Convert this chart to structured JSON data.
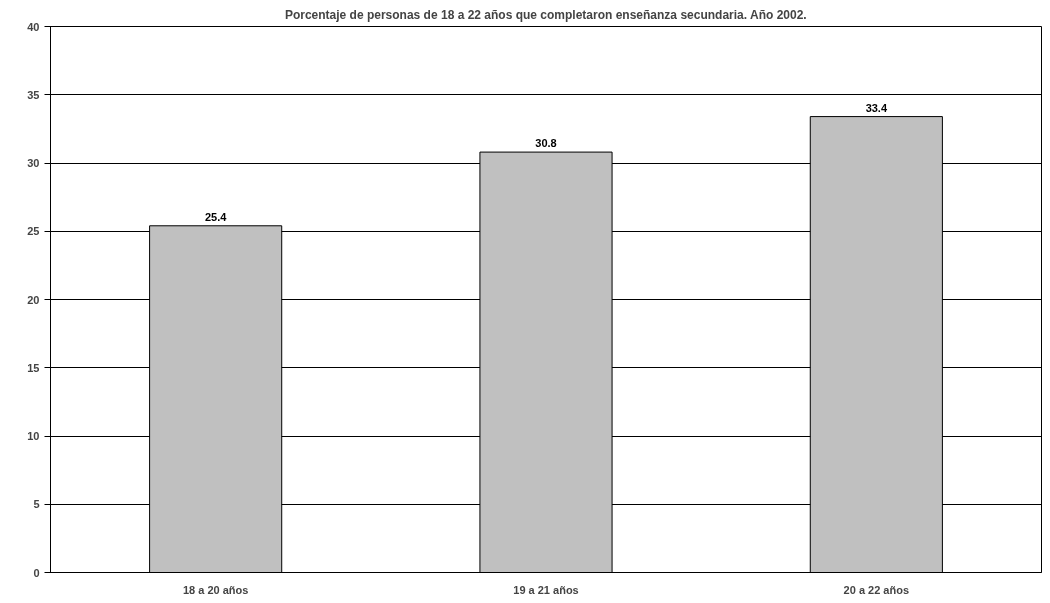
{
  "chart_data": {
    "type": "bar",
    "title": "Porcentaje de personas de 18 a 22 años que completaron enseñanza secundaria. Año 2002.",
    "categories": [
      "18 a 20 años",
      "19 a 21 años",
      "20 a 22 años"
    ],
    "values": [
      25.4,
      30.8,
      33.4
    ],
    "color": "#c0c0c0",
    "ylim": [
      0,
      40
    ],
    "yticks": [
      0,
      5,
      10,
      15,
      20,
      25,
      30,
      35,
      40
    ],
    "grid": "y",
    "data_labels": true
  }
}
